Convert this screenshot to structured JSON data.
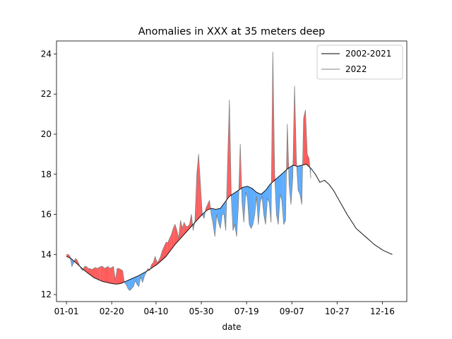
{
  "chart_data": {
    "type": "line",
    "title": "Anomalies in XXX at 35 meters deep",
    "xlabel": "date",
    "ylabel": "",
    "xlim": [
      -11,
      376
    ],
    "ylim": [
      11.65,
      24.65
    ],
    "x_ticks": [
      {
        "day": 0,
        "label": "01-01"
      },
      {
        "day": 50,
        "label": "02-20"
      },
      {
        "day": 99,
        "label": "04-10"
      },
      {
        "day": 149,
        "label": "05-30"
      },
      {
        "day": 199,
        "label": "07-19"
      },
      {
        "day": 249,
        "label": "09-07"
      },
      {
        "day": 299,
        "label": "10-27"
      },
      {
        "day": 349,
        "label": "12-16"
      }
    ],
    "y_ticks": [
      12,
      14,
      16,
      18,
      20,
      22,
      24
    ],
    "grid": false,
    "legend": {
      "position": "top-right",
      "entries": [
        {
          "label": "2002-2021",
          "color": "#000000"
        },
        {
          "label": "2022",
          "color": "#808080"
        }
      ]
    },
    "colors": {
      "above_climatology": "#ff5a5a",
      "below_climatology": "#5aabff"
    },
    "climatology": {
      "name": "2002-2021",
      "x": [
        0,
        5,
        10,
        20,
        30,
        40,
        50,
        55,
        60,
        65,
        70,
        80,
        90,
        95,
        100,
        110,
        120,
        130,
        140,
        150,
        155,
        160,
        165,
        170,
        175,
        180,
        185,
        190,
        195,
        200,
        205,
        210,
        215,
        220,
        225,
        230,
        235,
        240,
        245,
        250,
        255,
        260,
        265,
        270,
        275,
        280,
        285,
        290,
        295,
        300,
        310,
        320,
        330,
        340,
        350,
        360
      ],
      "y": [
        13.9,
        13.8,
        13.6,
        13.2,
        12.85,
        12.65,
        12.55,
        12.52,
        12.55,
        12.65,
        12.75,
        12.95,
        13.2,
        13.35,
        13.5,
        13.9,
        14.5,
        15.0,
        15.5,
        16.0,
        16.2,
        16.3,
        16.25,
        16.3,
        16.6,
        16.9,
        17.05,
        17.2,
        17.35,
        17.4,
        17.3,
        17.1,
        17.0,
        17.2,
        17.5,
        17.7,
        17.9,
        18.1,
        18.3,
        18.45,
        18.4,
        18.45,
        18.5,
        18.3,
        18.0,
        17.6,
        17.7,
        17.5,
        17.2,
        16.8,
        16.0,
        15.3,
        14.9,
        14.5,
        14.2,
        14.0
      ]
    },
    "series": [
      {
        "name": "2022",
        "x": [
          0,
          2,
          4,
          6,
          8,
          10,
          12,
          14,
          16,
          18,
          20,
          22,
          24,
          26,
          28,
          30,
          32,
          34,
          36,
          38,
          40,
          42,
          44,
          46,
          48,
          50,
          52,
          54,
          56,
          58,
          60,
          62,
          64,
          66,
          68,
          70,
          72,
          74,
          76,
          78,
          80,
          82,
          84,
          86,
          88,
          90,
          92,
          94,
          96,
          98,
          100,
          102,
          104,
          106,
          108,
          110,
          112,
          114,
          116,
          118,
          120,
          122,
          124,
          126,
          128,
          130,
          132,
          134,
          136,
          138,
          140,
          142,
          144,
          146,
          148,
          150,
          152,
          154,
          156,
          158,
          160,
          162,
          164,
          166,
          168,
          170,
          172,
          174,
          176,
          178,
          180,
          182,
          184,
          186,
          188,
          190,
          192,
          194,
          196,
          198,
          200,
          202,
          204,
          206,
          208,
          210,
          212,
          214,
          216,
          218,
          220,
          222,
          224,
          226,
          228,
          230,
          232,
          234,
          236,
          238,
          240,
          242,
          244,
          246,
          248,
          250,
          252,
          254,
          256,
          258,
          260,
          262,
          264,
          266,
          268,
          270
        ],
        "y": [
          14.0,
          14.0,
          13.9,
          13.4,
          13.6,
          13.8,
          13.7,
          13.5,
          13.3,
          13.2,
          13.4,
          13.4,
          13.3,
          13.3,
          13.25,
          13.3,
          13.35,
          13.3,
          13.35,
          13.4,
          13.4,
          13.3,
          13.35,
          13.4,
          13.3,
          13.35,
          13.4,
          12.7,
          13.3,
          13.3,
          13.25,
          13.2,
          12.6,
          12.5,
          12.3,
          12.2,
          12.3,
          12.4,
          12.7,
          12.5,
          12.4,
          12.9,
          12.6,
          12.9,
          13.1,
          13.3,
          13.2,
          13.5,
          13.6,
          13.9,
          13.6,
          13.7,
          13.9,
          14.2,
          14.4,
          14.6,
          14.6,
          14.8,
          15.0,
          15.3,
          15.5,
          15.2,
          14.8,
          15.7,
          15.3,
          15.6,
          15.4,
          15.4,
          15.5,
          16.0,
          15.2,
          15.7,
          18.0,
          19.0,
          17.5,
          16.0,
          15.8,
          16.3,
          16.5,
          16.7,
          16.0,
          15.5,
          14.9,
          16.0,
          15.6,
          15.3,
          16.0,
          16.0,
          15.2,
          18.5,
          21.7,
          17.0,
          15.2,
          15.5,
          14.9,
          16.5,
          19.5,
          16.6,
          15.6,
          17.1,
          16.8,
          15.5,
          15.3,
          15.5,
          16.0,
          16.9,
          15.5,
          16.6,
          16.9,
          16.0,
          15.5,
          16.8,
          16.6,
          15.6,
          24.1,
          18.0,
          16.0,
          15.5,
          17.0,
          16.7,
          15.5,
          15.7,
          20.5,
          17.5,
          16.5,
          17.8,
          22.4,
          18.7,
          17.2,
          17.0,
          16.5,
          20.8,
          21.2,
          19.0,
          18.8,
          17.8
        ]
      }
    ]
  }
}
